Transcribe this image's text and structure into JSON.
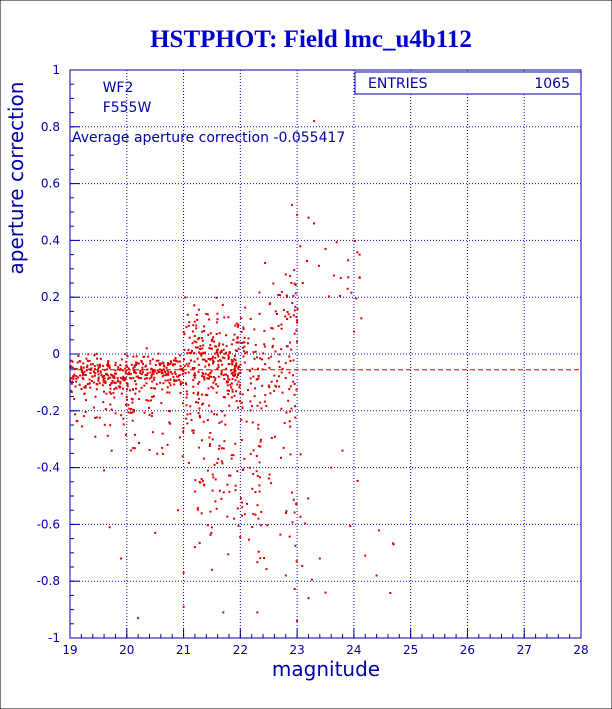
{
  "chart_data": {
    "type": "scatter",
    "title": "HSTPHOT: Field lmc_u4b112",
    "xlabel": "magnitude",
    "ylabel": "aperture correction",
    "xlim": [
      19,
      28
    ],
    "ylim": [
      -1,
      1
    ],
    "x_ticks": [
      "19",
      "20",
      "21",
      "22",
      "23",
      "24",
      "25",
      "26",
      "27",
      "28"
    ],
    "y_ticks": [
      "-1",
      "-0.8",
      "-0.6",
      "-0.4",
      "-0.2",
      "0",
      "0.2",
      "0.4",
      "0.6",
      "0.8",
      "1"
    ],
    "grid": true,
    "labels": {
      "chip": "WF2",
      "filter": "F555W",
      "average": "Average aperture correction  -0.055417"
    },
    "average_correction": -0.055417,
    "stats_box": {
      "entries_label": "ENTRIES",
      "entries_value": "1065"
    },
    "n_entries": 1065,
    "colors": {
      "title": "#0000cc",
      "axes": "#0000aa",
      "grid": "#0000cc",
      "points": "#dd0000",
      "average_line": "#dd0000"
    },
    "series": [
      {
        "point_style": "small red dots",
        "clusters": [
          {
            "x_range": [
              19.0,
              20.0
            ],
            "y_center": -0.07,
            "y_spread": 0.05,
            "count": 170
          },
          {
            "x_range": [
              19.0,
              20.2
            ],
            "y_center": -0.18,
            "y_spread": 0.12,
            "count": 60
          },
          {
            "x_range": [
              20.0,
              21.0
            ],
            "y_center": -0.06,
            "y_spread": 0.05,
            "count": 160
          },
          {
            "x_range": [
              20.0,
              21.2
            ],
            "y_center": -0.2,
            "y_spread": 0.15,
            "count": 70
          },
          {
            "x_range": [
              21.0,
              22.0
            ],
            "y_center": -0.04,
            "y_spread": 0.12,
            "count": 200
          },
          {
            "x_range": [
              21.0,
              22.1
            ],
            "y_center": 0.05,
            "y_spread": 0.1,
            "count": 70
          },
          {
            "x_range": [
              21.2,
              22.4
            ],
            "y_center": -0.35,
            "y_spread": 0.25,
            "count": 130
          },
          {
            "x_range": [
              22.0,
              23.0
            ],
            "y_center": -0.05,
            "y_spread": 0.2,
            "count": 110
          },
          {
            "x_range": [
              22.3,
              23.0
            ],
            "y_center": 0.18,
            "y_spread": 0.12,
            "count": 30
          },
          {
            "x_range": [
              22.2,
              23.2
            ],
            "y_center": -0.55,
            "y_spread": 0.22,
            "count": 35
          },
          {
            "x_range": [
              22.9,
              24.2
            ],
            "y_center": 0.25,
            "y_spread": 0.2,
            "count": 20
          },
          {
            "x_range": [
              22.9,
              24.8
            ],
            "y_center": -0.6,
            "y_spread": 0.2,
            "count": 10
          }
        ],
        "sample_points": [
          [
            19.6,
            -0.41
          ],
          [
            19.7,
            -0.61
          ],
          [
            19.9,
            -0.72
          ],
          [
            20.2,
            -0.93
          ],
          [
            20.5,
            -0.63
          ],
          [
            20.9,
            -0.55
          ],
          [
            21.0,
            -0.77
          ],
          [
            21.0,
            -0.89
          ],
          [
            21.2,
            -0.68
          ],
          [
            21.5,
            -0.76
          ],
          [
            21.7,
            -0.91
          ],
          [
            22.3,
            -0.91
          ],
          [
            22.8,
            -0.78
          ],
          [
            23.0,
            -0.94
          ],
          [
            23.2,
            -0.86
          ],
          [
            23.5,
            -0.84
          ],
          [
            23.4,
            -0.72
          ],
          [
            23.3,
            0.46
          ],
          [
            23.0,
            0.49
          ],
          [
            23.2,
            0.48
          ],
          [
            23.3,
            0.82
          ],
          [
            23.5,
            0.37
          ],
          [
            23.9,
            0.33
          ],
          [
            24.1,
            0.35
          ],
          [
            24.1,
            0.27
          ],
          [
            23.9,
            0.27
          ],
          [
            23.8,
            -0.34
          ],
          [
            24.2,
            -0.71
          ],
          [
            24.4,
            -0.78
          ],
          [
            24.7,
            -0.67
          ],
          [
            23.6,
            -0.4
          ],
          [
            22.9,
            0.25
          ],
          [
            22.8,
            0.28
          ],
          [
            23.1,
            0.25
          ]
        ]
      }
    ]
  }
}
